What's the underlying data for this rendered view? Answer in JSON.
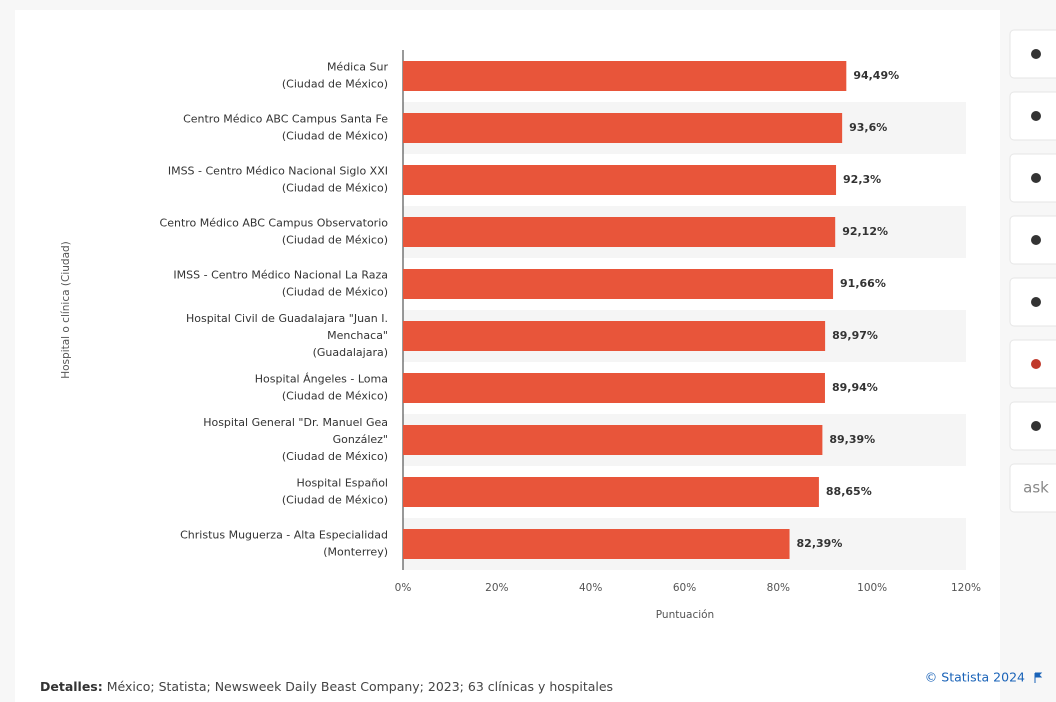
{
  "chart_data": {
    "type": "bar",
    "orientation": "horizontal",
    "categories": [
      [
        "Médica Sur",
        "(Ciudad de México)"
      ],
      [
        "Centro Médico ABC Campus Santa Fe",
        "(Ciudad de México)"
      ],
      [
        "IMSS - Centro Médico Nacional Siglo XXI",
        "(Ciudad de México)"
      ],
      [
        "Centro Médico ABC Campus Observatorio",
        "(Ciudad de México)"
      ],
      [
        "IMSS - Centro Médico Nacional La Raza",
        "(Ciudad de México)"
      ],
      [
        "Hospital Civil de Guadalajara \"Juan I.",
        "Menchaca\"",
        "(Guadalajara)"
      ],
      [
        "Hospital Ángeles - Loma",
        "(Ciudad de México)"
      ],
      [
        "Hospital General \"Dr. Manuel Gea",
        "González\"",
        "(Ciudad de México)"
      ],
      [
        "Hospital Español",
        "(Ciudad de México)"
      ],
      [
        "Christus Muguerza - Alta Especialidad",
        "(Monterrey)"
      ]
    ],
    "values": [
      94.49,
      93.6,
      92.3,
      92.12,
      91.66,
      89.97,
      89.94,
      89.39,
      88.65,
      82.39
    ],
    "value_labels": [
      "94,49%",
      "93,6%",
      "92,3%",
      "92,12%",
      "91,66%",
      "89,97%",
      "89,94%",
      "89,39%",
      "88,65%",
      "82,39%"
    ],
    "color": "#e8553a",
    "xlim": [
      0,
      120
    ],
    "xticks": [
      {
        "value": 0,
        "label": "0%"
      },
      {
        "value": 20,
        "label": "20%"
      },
      {
        "value": 40,
        "label": "40%"
      },
      {
        "value": 60,
        "label": "60%"
      },
      {
        "value": 80,
        "label": "80%"
      },
      {
        "value": 100,
        "label": "100%"
      },
      {
        "value": 120,
        "label": "120%"
      }
    ],
    "x_label": "Puntuación",
    "y_label": "Hospital o clínica (Ciudad)",
    "details_label": "Detalles:",
    "details": "México; Statista; Newsweek Daily Beast Company; 2023; 63 clínicas y hospitales",
    "source": "© Statista 2024"
  },
  "sidebar": {
    "ask": "ask"
  }
}
